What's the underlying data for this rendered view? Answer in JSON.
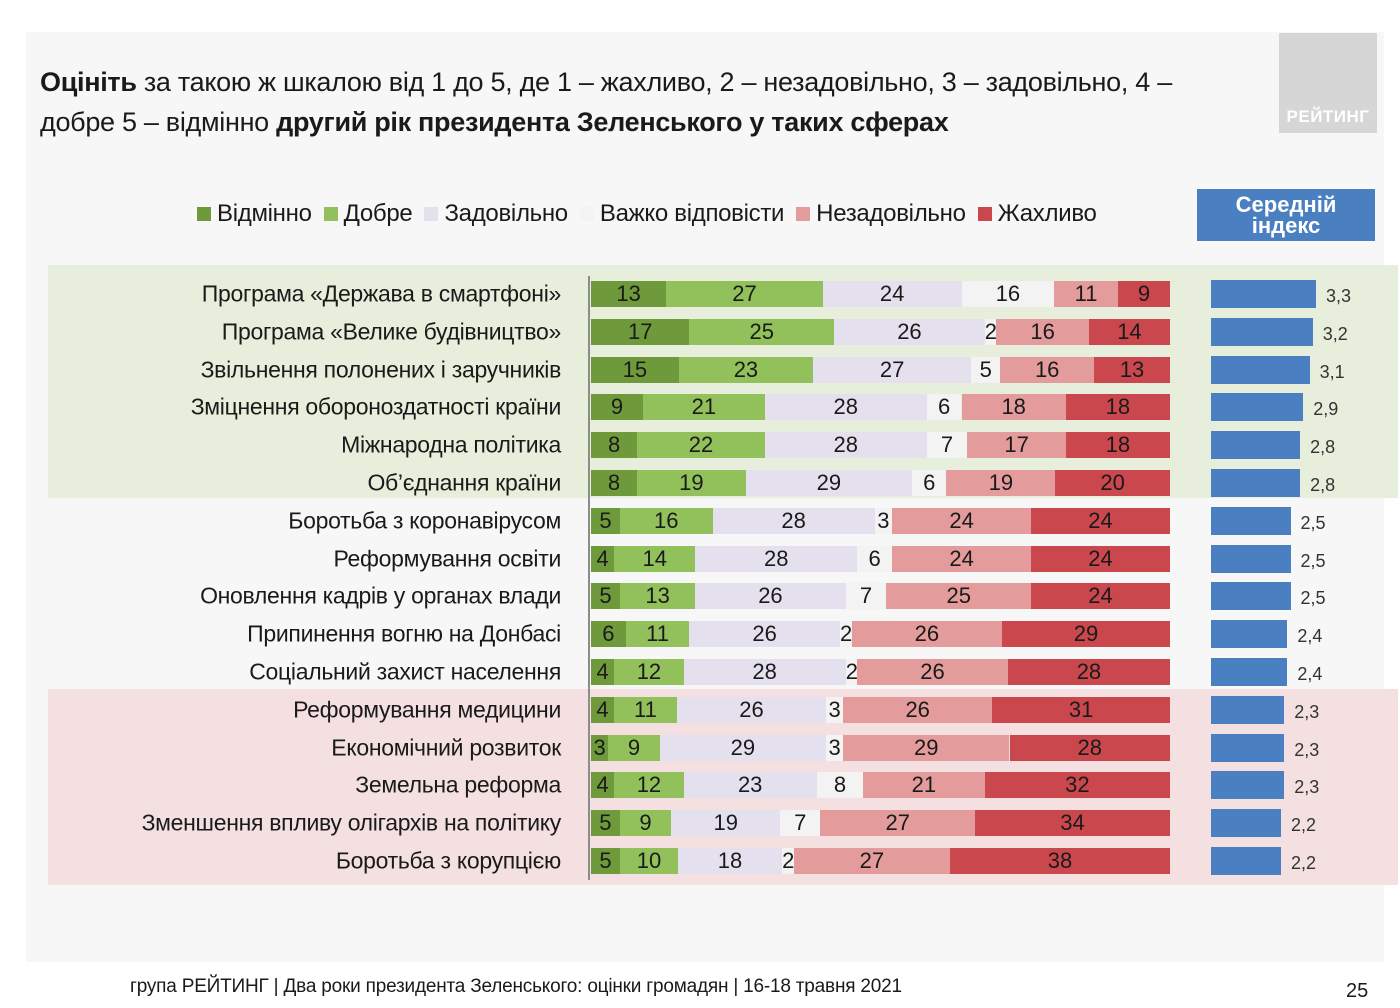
{
  "title": {
    "part1_bold": "Оцініть",
    "part2": " за такою ж шкалою від 1 до 5, де 1 – жахливо, 2 – незадовільно, 3 – задовільно, 4 – добре 5 – відмінно ",
    "part3_bold": "другий рік президента Зеленського у таких сферах"
  },
  "logo": {
    "text": "РЕЙТИНГ"
  },
  "mean_header": {
    "line1": "Середній",
    "line2": "індекс"
  },
  "footer": {
    "text": "група РЕЙТИНГ | Два роки президента Зеленського: оцінки громадян  | 16-18 травня 2021",
    "page_number": "25"
  },
  "colors": {
    "excellent": "#6f9a3b",
    "good": "#92c05a",
    "satisfactory": "#e5e0ee",
    "hard_to_say": "#f3f3f3",
    "unsatisfactory": "#e39b9b",
    "terrible": "#c9474d",
    "mean_bar": "#4a80c1"
  },
  "chart_data": {
    "type": "bar",
    "orientation": "horizontal",
    "stacked": true,
    "unit": "%",
    "legend": [
      "Відмінно",
      "Добре",
      "Задовільно",
      "Важко відповісти",
      "Незадовільно",
      "Жахливо"
    ],
    "legend_position": "top",
    "categories": [
      "Програма «Держава в смартфоні»",
      "Програма «Велике будівництво»",
      "Звільнення полонених і заручників",
      "Зміцнення обороноздатності країни",
      "Міжнародна політика",
      "Об’єднання країни",
      "Боротьба з коронавірусом",
      "Реформування освіти",
      "Оновлення кадрів у органах влади",
      "Припинення вогню на Донбасі",
      "Соціальний захист населення",
      "Реформування медицини",
      "Економічний розвиток",
      "Земельна реформа",
      "Зменшення впливу олігархів на політику",
      "Боротьба з корупцією"
    ],
    "series": [
      {
        "name": "Відмінно",
        "values": [
          13,
          17,
          15,
          9,
          8,
          8,
          5,
          4,
          5,
          6,
          4,
          4,
          3,
          4,
          5,
          5
        ]
      },
      {
        "name": "Добре",
        "values": [
          27,
          25,
          23,
          21,
          22,
          19,
          16,
          14,
          13,
          11,
          12,
          11,
          9,
          12,
          9,
          10
        ]
      },
      {
        "name": "Задовільно",
        "values": [
          24,
          26,
          27,
          28,
          28,
          29,
          28,
          28,
          26,
          26,
          28,
          26,
          29,
          23,
          19,
          18
        ]
      },
      {
        "name": "Важко відповісти",
        "values": [
          16,
          2,
          5,
          6,
          7,
          6,
          3,
          6,
          7,
          2,
          2,
          3,
          3,
          8,
          7,
          2
        ]
      },
      {
        "name": "Незадовільно",
        "values": [
          11,
          16,
          16,
          18,
          17,
          19,
          24,
          24,
          25,
          26,
          26,
          26,
          29,
          21,
          27,
          27
        ]
      },
      {
        "name": "Жахливо",
        "values": [
          9,
          14,
          13,
          18,
          18,
          20,
          24,
          24,
          24,
          29,
          28,
          31,
          28,
          32,
          34,
          38
        ]
      }
    ],
    "mean_index": {
      "title": "Середній індекс",
      "values": [
        "3,3",
        "3,2",
        "3,1",
        "2,9",
        "2,8",
        "2,8",
        "2,5",
        "2,5",
        "2,5",
        "2,4",
        "2,4",
        "2,3",
        "2,3",
        "2,3",
        "2,2",
        "2,2"
      ]
    }
  }
}
